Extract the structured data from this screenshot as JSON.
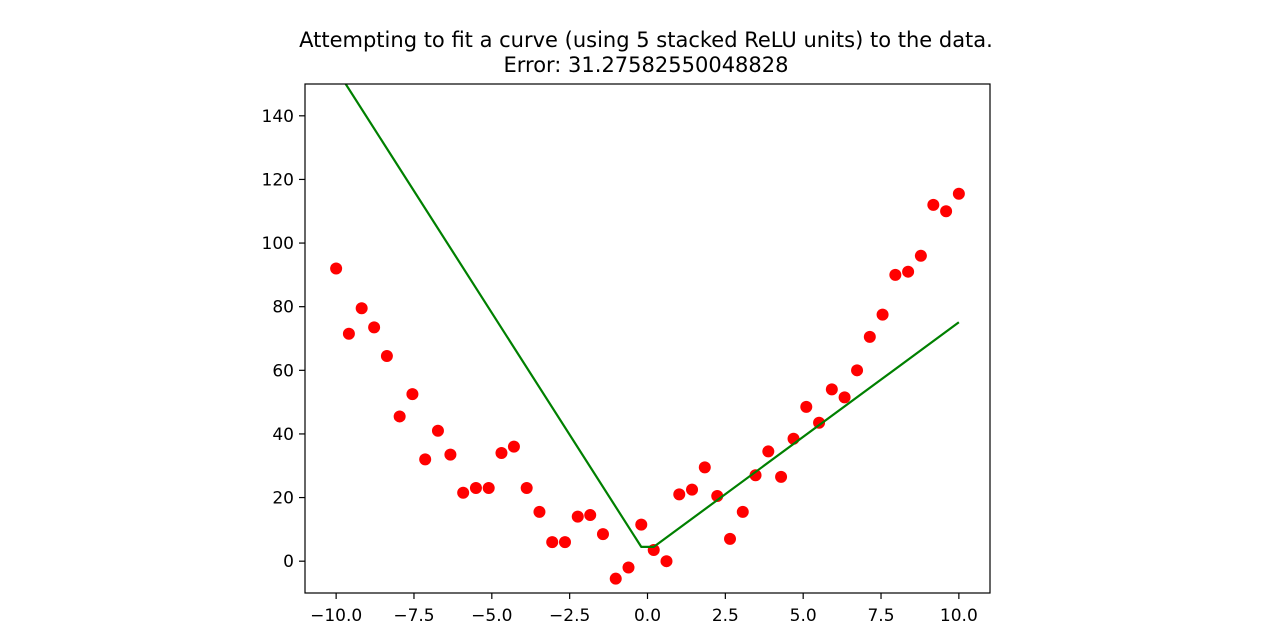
{
  "chart_data": {
    "type": "scatter",
    "title_line1": "Attempting to fit a curve (using 5 stacked ReLU units) to the data.",
    "title_line2": "Error: 31.27582550048828",
    "xlabel": "",
    "ylabel": "",
    "xlim": [
      -11.0,
      11.0
    ],
    "ylim": [
      -10,
      150
    ],
    "x_ticks": [
      -10.0,
      -7.5,
      -5.0,
      -2.5,
      0.0,
      2.5,
      5.0,
      7.5,
      10.0
    ],
    "x_tick_labels": [
      "−10.0",
      "−7.5",
      "−5.0",
      "−2.5",
      "0.0",
      "2.5",
      "5.0",
      "7.5",
      "10.0"
    ],
    "y_ticks": [
      0,
      20,
      40,
      60,
      80,
      100,
      120,
      140
    ],
    "y_tick_labels": [
      "0",
      "20",
      "40",
      "60",
      "80",
      "100",
      "120",
      "140"
    ],
    "grid": false,
    "colors": {
      "points": "#ff0000",
      "fit_line": "#008000",
      "axes": "#000000"
    },
    "series": [
      {
        "type": "scatter",
        "x": [
          -10.0,
          -9.59,
          -9.18,
          -8.78,
          -8.37,
          -7.96,
          -7.55,
          -7.14,
          -6.73,
          -6.33,
          -5.92,
          -5.51,
          -5.1,
          -4.69,
          -4.29,
          -3.88,
          -3.47,
          -3.06,
          -2.65,
          -2.24,
          -1.84,
          -1.43,
          -1.02,
          -0.61,
          -0.2,
          0.2,
          0.61,
          1.02,
          1.43,
          1.84,
          2.24,
          2.65,
          3.06,
          3.47,
          3.88,
          4.29,
          4.69,
          5.1,
          5.51,
          5.92,
          6.33,
          6.73,
          7.14,
          7.55,
          7.96,
          8.37,
          8.78,
          9.18,
          9.59,
          10.0
        ],
        "y": [
          92,
          71.5,
          79.5,
          73.5,
          64.5,
          45.5,
          52.5,
          32,
          41,
          33.5,
          21.5,
          23,
          23,
          34,
          36,
          23,
          15.5,
          6,
          6,
          14,
          14.5,
          8.5,
          -5.5,
          -2,
          11.5,
          3.5,
          0,
          21,
          22.5,
          29.5,
          20.5,
          7,
          15.5,
          27,
          34.5,
          26.5,
          38.5,
          48.5,
          43.5,
          54,
          51.5,
          60,
          70.5,
          77.5,
          90,
          91,
          96,
          112,
          110,
          115.5
        ]
      },
      {
        "type": "line",
        "x": [
          -10.0,
          -0.2,
          0.2,
          10.0
        ],
        "y": [
          154.7,
          4.5,
          4.5,
          75.1
        ]
      }
    ]
  }
}
